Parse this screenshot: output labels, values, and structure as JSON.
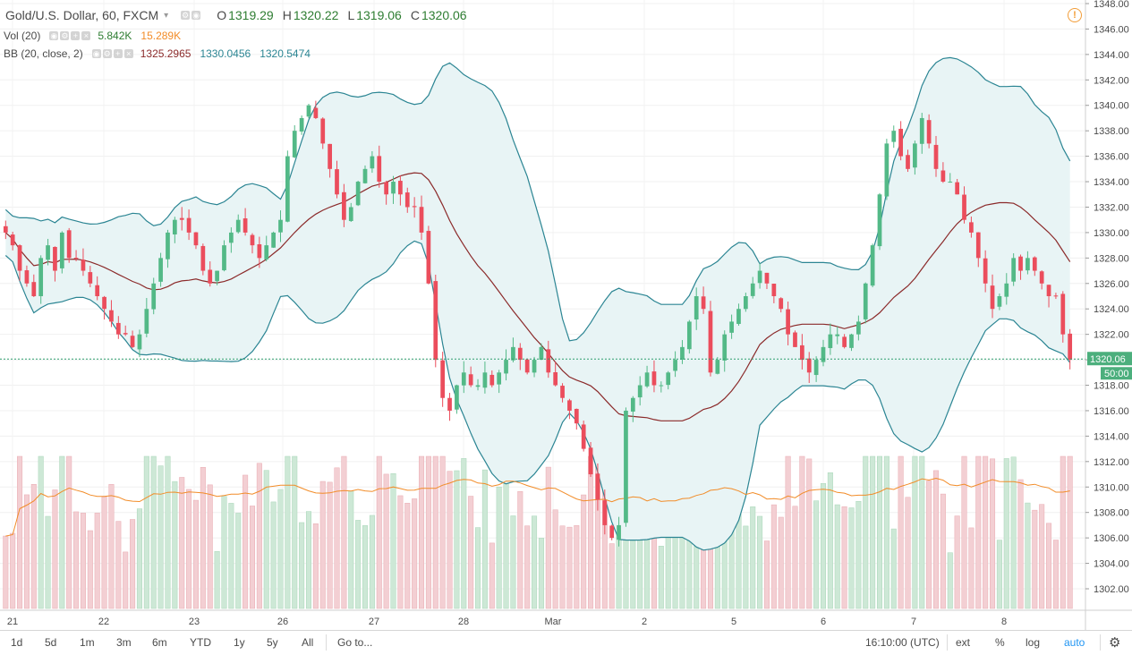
{
  "legend": {
    "symbol": "Gold/U.S. Dollar, 60, FXCM",
    "o_label": "O",
    "o": "1319.29",
    "h_label": "H",
    "h": "1320.22",
    "l_label": "L",
    "l": "1319.06",
    "c_label": "C",
    "c": "1320.06",
    "vol_name": "Vol (20)",
    "vol_1": "5.842K",
    "vol_2": "15.289K",
    "bb_name": "BB (20, close, 2)",
    "bb_1": "1325.2965",
    "bb_2": "1330.0456",
    "bb_3": "1320.5474"
  },
  "alert_icon": "!",
  "price_tag": "1320.06",
  "countdown_tag": "50:00",
  "colors": {
    "up": "#53b987",
    "down": "#eb4d5c",
    "bb_band": "#2b8593",
    "bb_basis": "#8b2a2a",
    "bb_fill": "#e8f4f5",
    "vol_ma": "#f28c28",
    "price_line": "#2e9f6f",
    "price_tag_bg": "#4caf7d",
    "alert": "#f29d38"
  },
  "toolbar": {
    "ranges": [
      "1d",
      "5d",
      "1m",
      "3m",
      "6m",
      "YTD",
      "1y",
      "5y",
      "All"
    ],
    "goto": "Go to...",
    "clock": "16:10:00 (UTC)",
    "ext": "ext",
    "percent": "%",
    "log": "log",
    "auto": "auto",
    "settings_icon": "gear-icon"
  },
  "chart_data": {
    "type": "candlestick",
    "timeframe": "60",
    "y_ticks": [
      1348,
      1346,
      1344,
      1342,
      1340,
      1338,
      1336,
      1334,
      1332,
      1330,
      1328,
      1326,
      1324,
      1322,
      1320,
      1318,
      1316,
      1314,
      1312,
      1310,
      1308,
      1306,
      1304,
      1302
    ],
    "ylim": [
      1300.4,
      1348.4
    ],
    "x_ticks": [
      "21",
      "22",
      "23",
      "26",
      "27",
      "28",
      "Mar",
      "2",
      "5",
      "6",
      "7",
      "8"
    ],
    "last_price": 1320.06,
    "close_series": [
      1330,
      1329,
      1327,
      1326,
      1325,
      1328,
      1329,
      1327,
      1330,
      1328,
      1328,
      1327,
      1326,
      1325,
      1324,
      1323,
      1322,
      1322,
      1321,
      1322,
      1324,
      1326,
      1328,
      1330,
      1331,
      1331,
      1330,
      1329,
      1327,
      1326,
      1327,
      1329,
      1330,
      1331,
      1330,
      1329,
      1328,
      1329,
      1330,
      1331,
      1336,
      1338,
      1339,
      1340,
      1339,
      1337,
      1335,
      1333,
      1331,
      1332,
      1334,
      1335,
      1336,
      1334,
      1333,
      1334,
      1333,
      1332,
      1332,
      1330,
      1326,
      1320,
      1317,
      1316,
      1318,
      1319,
      1318,
      1318,
      1319,
      1318,
      1319,
      1320,
      1321,
      1320,
      1319,
      1320,
      1321,
      1319,
      1318,
      1317,
      1316,
      1315,
      1313,
      1311,
      1309,
      1307,
      1306,
      1307,
      1316,
      1317,
      1318,
      1319,
      1318,
      1318,
      1319,
      1320,
      1321,
      1323,
      1325,
      1324,
      1319,
      1320,
      1322,
      1323,
      1324,
      1325,
      1326,
      1327,
      1326,
      1325,
      1324,
      1322,
      1321,
      1320,
      1319,
      1320,
      1321,
      1322,
      1322,
      1321,
      1322,
      1323,
      1326,
      1329,
      1333,
      1337,
      1338,
      1336,
      1335,
      1337,
      1339,
      1337,
      1335,
      1334,
      1334,
      1333,
      1331,
      1330,
      1328,
      1326,
      1324,
      1325,
      1326,
      1328,
      1327,
      1328,
      1327,
      1326,
      1325,
      1325,
      1322,
      1320
    ],
    "volume_scale_max": 12
  }
}
